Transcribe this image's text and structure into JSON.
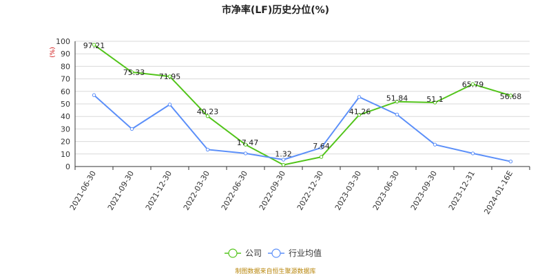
{
  "chart_data": {
    "type": "line",
    "title": "市净率(LF)历史分位(%)",
    "unit_label": "(%)",
    "xlabel": "",
    "ylabel": "",
    "ylim": [
      0,
      100
    ],
    "yticks": [
      0,
      10,
      20,
      30,
      40,
      50,
      60,
      70,
      80,
      90,
      100
    ],
    "grid": true,
    "legend_position": "bottom",
    "categories": [
      "2021-06-30",
      "2021-09-30",
      "2021-12-30",
      "2022-03-30",
      "2022-06-30",
      "2022-09-30",
      "2022-12-30",
      "2023-03-30",
      "2023-06-30",
      "2023-09-30",
      "2023-12-31",
      "2024-01-16E"
    ],
    "series": [
      {
        "name": "公司",
        "color": "#52c41a",
        "values": [
          97.21,
          75.33,
          71.95,
          40.23,
          17.47,
          1.32,
          7.64,
          41.26,
          51.84,
          51.1,
          65.79,
          56.68
        ],
        "labels": [
          "97.21",
          "75.33",
          "71.95",
          "40.23",
          "17.47",
          "1.32",
          "7.64",
          "41.26",
          "51.84",
          "51.1",
          "65.79",
          "56.68"
        ]
      },
      {
        "name": "行业均值",
        "color": "#5b8ff9",
        "values": [
          57,
          30,
          49.5,
          13.5,
          10.5,
          5.5,
          15,
          55.5,
          41.5,
          17.5,
          10.5,
          4
        ]
      }
    ],
    "source": "制图数据来自恒生聚源数据库"
  }
}
